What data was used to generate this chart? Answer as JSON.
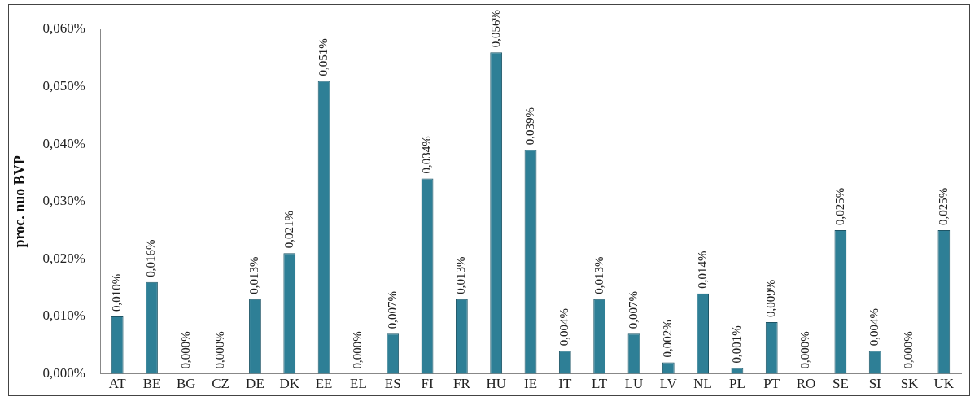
{
  "chart_data": {
    "type": "bar",
    "ylabel": "proc. nuo BVP",
    "categories": [
      "AT",
      "BE",
      "BG",
      "CZ",
      "DE",
      "DK",
      "EE",
      "EL",
      "ES",
      "FI",
      "FR",
      "HU",
      "IE",
      "IT",
      "LT",
      "LU",
      "LV",
      "NL",
      "PL",
      "PT",
      "RO",
      "SE",
      "SI",
      "SK",
      "UK"
    ],
    "values": [
      0.01,
      0.016,
      0.0,
      0.0,
      0.013,
      0.021,
      0.051,
      0.0,
      0.007,
      0.034,
      0.013,
      0.056,
      0.039,
      0.004,
      0.013,
      0.007,
      0.002,
      0.014,
      0.001,
      0.009,
      0.0,
      0.025,
      0.004,
      0.0,
      0.025
    ],
    "value_labels": [
      "0,010%",
      "0,016%",
      "0,000%",
      "0,000%",
      "0,013%",
      "0,021%",
      "0,051%",
      "0,000%",
      "0,007%",
      "0,034%",
      "0,013%",
      "0,056%",
      "0,039%",
      "0,004%",
      "0,013%",
      "0,007%",
      "0,002%",
      "0,014%",
      "0,001%",
      "0,009%",
      "0,000%",
      "0,025%",
      "0,004%",
      "0,000%",
      "0,025%"
    ],
    "color": "#2e7f96",
    "ylim": [
      0,
      0.06
    ],
    "yticks": [
      {
        "value": 0,
        "label": "0,000%"
      },
      {
        "value": 0.01,
        "label": "0,010%"
      },
      {
        "value": 0.02,
        "label": "0,020%"
      },
      {
        "value": 0.03,
        "label": "0,030%"
      },
      {
        "value": 0.04,
        "label": "0,040%"
      },
      {
        "value": 0.05,
        "label": "0,050%"
      },
      {
        "value": 0.06,
        "label": "0,060%"
      }
    ],
    "grid": false,
    "legend": false
  }
}
